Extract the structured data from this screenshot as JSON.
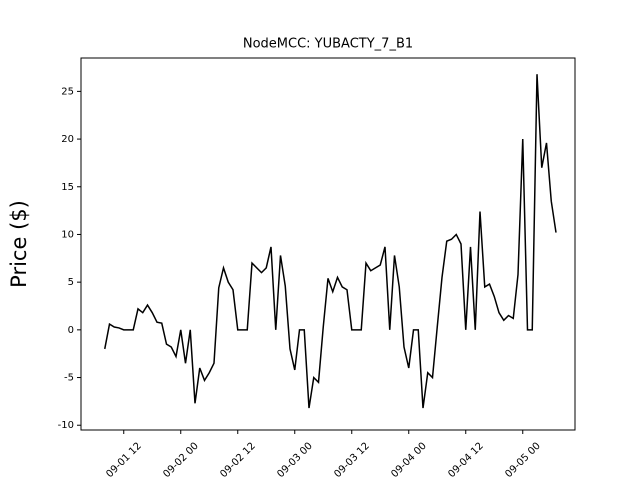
{
  "chart_data": {
    "type": "line",
    "title": "NodeMCC: YUBACTY_7_B1",
    "y_label": "Price ($)",
    "x": [
      "09-01 08",
      "09-01 09",
      "09-01 10",
      "09-01 11",
      "09-01 12",
      "09-01 13",
      "09-01 14",
      "09-01 15",
      "09-01 16",
      "09-01 17",
      "09-01 18",
      "09-01 19",
      "09-01 20",
      "09-01 21",
      "09-01 22",
      "09-01 23",
      "09-02 00",
      "09-02 01",
      "09-02 02",
      "09-02 03",
      "09-02 04",
      "09-02 05",
      "09-02 06",
      "09-02 07",
      "09-02 08",
      "09-02 09",
      "09-02 10",
      "09-02 11",
      "09-02 12",
      "09-02 13",
      "09-02 14",
      "09-02 15",
      "09-02 16",
      "09-02 17",
      "09-02 18",
      "09-02 19",
      "09-02 20",
      "09-02 21",
      "09-02 22",
      "09-02 23",
      "09-03 00",
      "09-03 01",
      "09-03 02",
      "09-03 03",
      "09-03 04",
      "09-03 05",
      "09-03 06",
      "09-03 07",
      "09-03 08",
      "09-03 09",
      "09-03 10",
      "09-03 11",
      "09-03 12",
      "09-03 13",
      "09-03 14",
      "09-03 15",
      "09-03 16",
      "09-03 17",
      "09-03 18",
      "09-03 19",
      "09-03 20",
      "09-03 21",
      "09-03 22",
      "09-03 23",
      "09-04 00",
      "09-04 01",
      "09-04 02",
      "09-04 03",
      "09-04 04",
      "09-04 05",
      "09-04 06",
      "09-04 07",
      "09-04 08",
      "09-04 09",
      "09-04 10",
      "09-04 11",
      "09-04 12",
      "09-04 13",
      "09-04 14",
      "09-04 15",
      "09-04 16",
      "09-04 17",
      "09-04 18",
      "09-04 19",
      "09-04 20",
      "09-04 21",
      "09-04 22",
      "09-04 23",
      "09-05 00",
      "09-05 01",
      "09-05 02",
      "09-05 03",
      "09-05 04",
      "09-05 05",
      "09-05 06",
      "09-05 07"
    ],
    "series": [
      {
        "color": "#000000",
        "values": [
          -2,
          0.6,
          0.3,
          0.2,
          0,
          0,
          0,
          2.2,
          1.8,
          2.6,
          1.8,
          0.8,
          0.7,
          -1.5,
          -1.8,
          -2.8,
          0,
          -3.5,
          0,
          -7.7,
          -4,
          -5.3,
          -4.5,
          -3.5,
          4.4,
          6.5,
          5,
          4.2,
          0,
          0,
          0,
          7,
          6.5,
          6,
          6.5,
          8.7,
          0,
          7.8,
          4.6,
          -2,
          -4.2,
          0,
          0,
          -8.2,
          -5,
          -5.5,
          0.3,
          5.4,
          4,
          5.5,
          4.5,
          4.2,
          0,
          0,
          0,
          7,
          6.2,
          6.5,
          6.8,
          8.7,
          0,
          7.8,
          4.5,
          -1.8,
          -4,
          0,
          0,
          -8.2,
          -4.5,
          -5,
          0.3,
          5.5,
          9.3,
          9.5,
          10,
          9,
          0,
          8.7,
          0,
          12.4,
          4.5,
          4.8,
          3.5,
          1.8,
          1,
          1.5,
          1.2,
          5.8,
          20,
          0,
          0,
          26.8,
          17,
          19.6,
          13.5,
          10.2
        ]
      }
    ],
    "xlim": [
      "09-01 03",
      "09-05 11"
    ],
    "xticks": [
      "09-01 12",
      "09-02 00",
      "09-02 12",
      "09-03 00",
      "09-03 12",
      "09-04 00",
      "09-04 12",
      "09-05 00"
    ],
    "ylim": [
      -10.5,
      28.5
    ],
    "yticks": [
      -10,
      -5,
      0,
      5,
      10,
      15,
      20,
      25
    ]
  }
}
